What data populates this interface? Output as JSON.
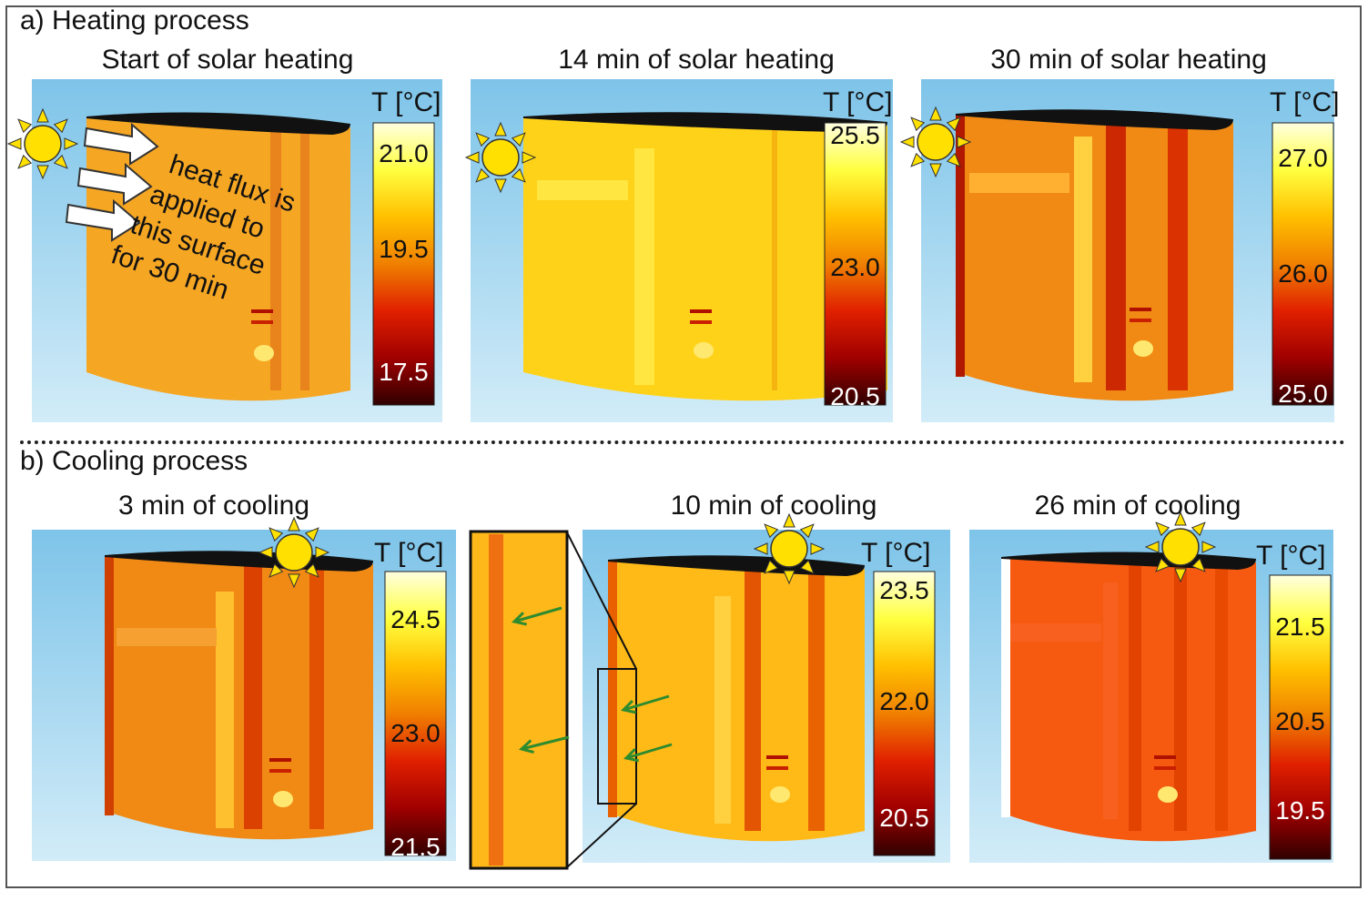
{
  "sections": {
    "heating_label": "a) Heating process",
    "cooling_label": "b) Cooling process"
  },
  "panels": [
    {
      "title": "Start of solar heating",
      "colorbar_title": "T [°C]",
      "ticks": [
        "21.0",
        "19.5",
        "17.5"
      ]
    },
    {
      "title": "14 min of solar heating",
      "colorbar_title": "T [°C]",
      "ticks": [
        "25.5",
        "23.0",
        "20.5"
      ]
    },
    {
      "title": "30 min of solar heating",
      "colorbar_title": "T [°C]",
      "ticks": [
        "27.0",
        "26.0",
        "25.0"
      ]
    },
    {
      "title": "3 min of cooling",
      "colorbar_title": "T [°C]",
      "ticks": [
        "24.5",
        "23.0",
        "21.5"
      ]
    },
    {
      "title": "10 min of cooling",
      "colorbar_title": "T [°C]",
      "ticks": [
        "23.5",
        "22.0",
        "20.5"
      ]
    },
    {
      "title": "26 min of cooling",
      "colorbar_title": "T [°C]",
      "ticks": [
        "21.5",
        "20.5",
        "19.5"
      ]
    }
  ],
  "annotation": {
    "lines": [
      "heat flux is",
      "applied to",
      "this surface",
      "for 30 min"
    ]
  },
  "colors": {
    "sky_top": "#7ec4e9",
    "sky_bottom": "#d2ecf8",
    "colormap": [
      "#ffffe0",
      "#ffff40",
      "#ffc000",
      "#f08000",
      "#e02000",
      "#a00000",
      "#300000"
    ],
    "sun": "#ffe000",
    "arrow_green": "#2e8b2e"
  },
  "icons": [
    "sun-icon",
    "heat-flux-arrow-icon",
    "green-arrow-icon"
  ]
}
